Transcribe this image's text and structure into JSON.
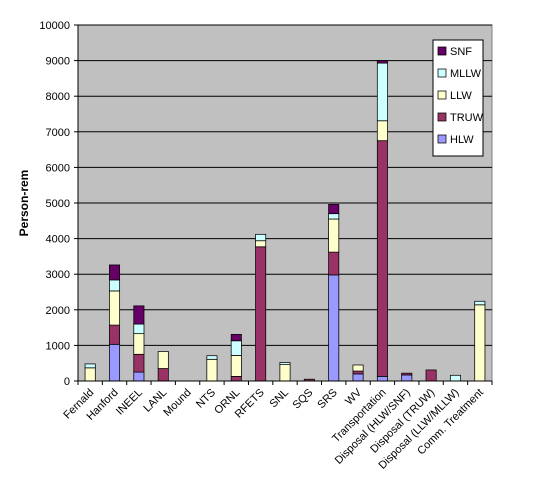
{
  "chart_data": {
    "type": "bar",
    "stacked": true,
    "title": "",
    "xlabel": "",
    "ylabel": "Person-rem",
    "ylim": [
      0,
      10000
    ],
    "yticks": [
      0,
      1000,
      2000,
      3000,
      4000,
      5000,
      6000,
      7000,
      8000,
      9000,
      10000
    ],
    "grid": true,
    "legend_position": "top-right",
    "plot_background": "#c0c0c0",
    "categories": [
      "Fernald",
      "Hanford",
      "INEEL",
      "LANL",
      "Mound",
      "NTS",
      "ORNL",
      "RFETS",
      "SNL",
      "SQS",
      "SRS",
      "WV",
      "Transportation",
      "Disposal (HLW/SNF)",
      "Disposal (TRUW)",
      "Disposal (LLW/MLLW)",
      "Comm. Treatment"
    ],
    "series": [
      {
        "name": "HLW",
        "color": "#9999ff",
        "values": [
          0,
          1030,
          250,
          0,
          0,
          0,
          0,
          0,
          0,
          0,
          2980,
          200,
          130,
          170,
          0,
          0,
          0
        ]
      },
      {
        "name": "TRUW",
        "color": "#993366",
        "values": [
          0,
          540,
          500,
          350,
          0,
          0,
          130,
          3770,
          0,
          50,
          640,
          80,
          6620,
          50,
          310,
          0,
          0
        ]
      },
      {
        "name": "LLW",
        "color": "#ffffcc",
        "values": [
          370,
          960,
          580,
          480,
          0,
          610,
          590,
          170,
          460,
          0,
          930,
          170,
          560,
          0,
          0,
          0,
          2140
        ]
      },
      {
        "name": "MLLW",
        "color": "#ccffff",
        "values": [
          110,
          310,
          270,
          0,
          0,
          100,
          410,
          180,
          60,
          0,
          150,
          0,
          1620,
          0,
          0,
          160,
          100
        ]
      },
      {
        "name": "SNF",
        "color": "#660066",
        "values": [
          0,
          420,
          510,
          0,
          0,
          0,
          180,
          0,
          0,
          0,
          260,
          0,
          70,
          0,
          0,
          0,
          0
        ]
      }
    ]
  }
}
